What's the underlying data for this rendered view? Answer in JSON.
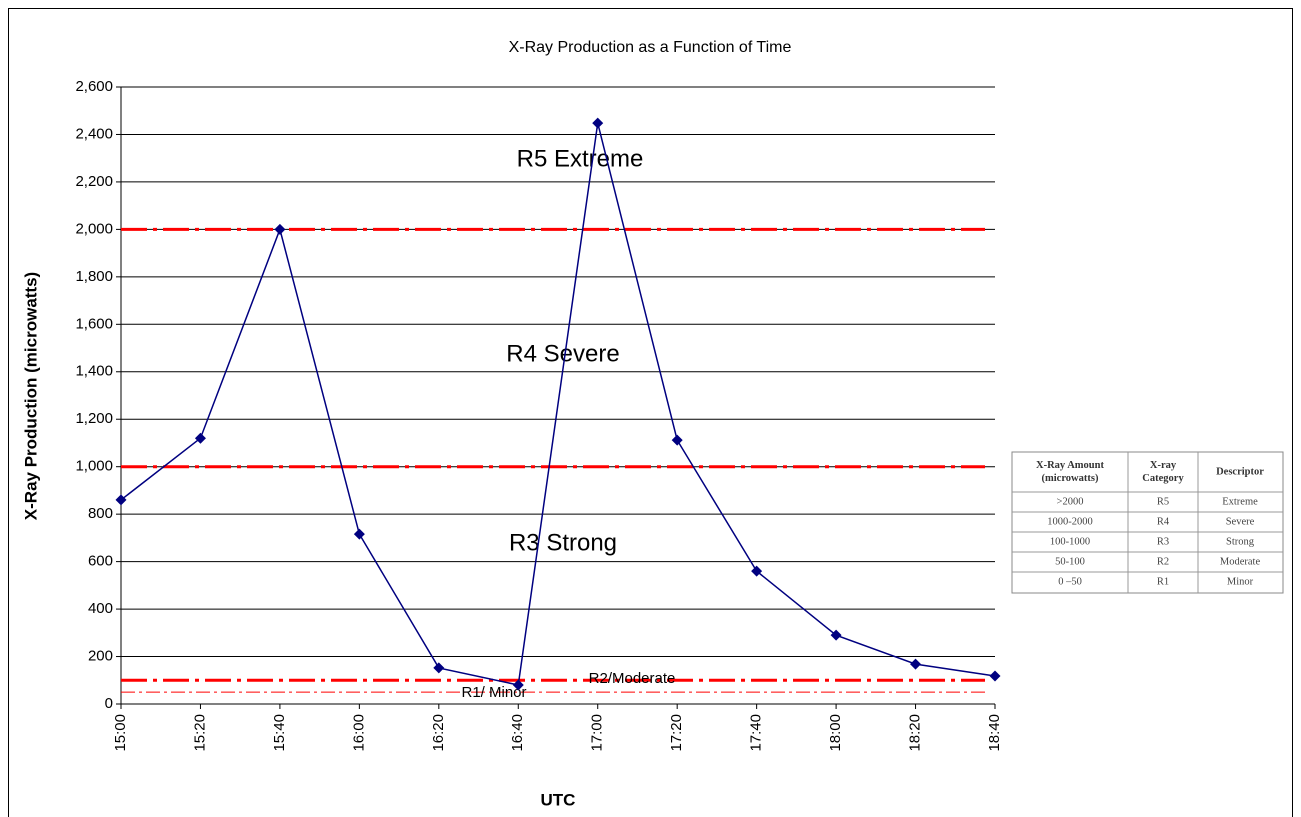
{
  "chart_data": {
    "type": "line",
    "title": "X-Ray Production as a Function of Time",
    "x_label": "UTC",
    "y_label": "X-Ray Production (microwatts)",
    "categories": [
      "15:00",
      "15:20",
      "15:40",
      "16:00",
      "16:20",
      "16:40",
      "17:00",
      "17:20",
      "17:40",
      "18:00",
      "18:20",
      "18:40"
    ],
    "series": [
      {
        "name": "X-Ray Production",
        "color": "#000080",
        "values": [
          860,
          1120,
          2000,
          716,
          152,
          80,
          2448,
          1112,
          560,
          290,
          168,
          118
        ]
      }
    ],
    "ylim": [
      0,
      2600
    ],
    "yticks": [
      0,
      200,
      400,
      600,
      800,
      {
        "value": 1000,
        "label": "1,000"
      },
      {
        "value": 1200,
        "label": "1,200"
      },
      {
        "value": 1400,
        "label": "1,400"
      },
      {
        "value": 1600,
        "label": "1,600"
      },
      {
        "value": 1800,
        "label": "1,800"
      },
      {
        "value": 2000,
        "label": "2,000"
      },
      {
        "value": 2200,
        "label": "2,200"
      },
      {
        "value": 2400,
        "label": "2,400"
      },
      {
        "value": 2600,
        "label": "2,600"
      }
    ],
    "grid": true,
    "thresholds": [
      {
        "value": 2000,
        "color": "#ff0000",
        "width": 3
      },
      {
        "value": 1000,
        "color": "#ff0000",
        "width": 3
      },
      {
        "value": 100,
        "color": "#ff0000",
        "width": 3
      },
      {
        "value": 50,
        "color": "#ff0000",
        "width": 1
      }
    ],
    "annotations": [
      "R5 Extreme",
      "R4 Severe",
      "R3 Strong",
      "R2/Moderate",
      "R1/ Minor"
    ]
  },
  "table": {
    "header": [
      "X-Ray Amount (microwatts)",
      "X-ray Category",
      "Descriptor"
    ],
    "rows": [
      [
        ">2000",
        "R5",
        "Extreme"
      ],
      [
        "1000-2000",
        "R4",
        "Severe"
      ],
      [
        "100-1000",
        "R3",
        "Strong"
      ],
      [
        "50-100",
        "R2",
        "Moderate"
      ],
      [
        "0 –50",
        "R1",
        "Minor"
      ]
    ]
  }
}
